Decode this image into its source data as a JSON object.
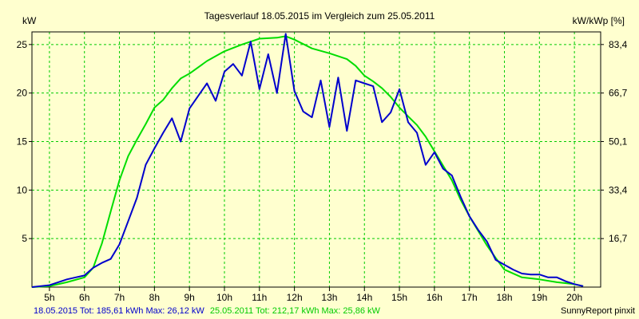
{
  "chart_data": {
    "type": "line",
    "title": "Tagesverlauf 18.05.2015 im Vergleich zum 25.05.2011",
    "ylabel_left": "kW",
    "ylabel_right": "kW/kWp [%]",
    "xlim": [
      4.5,
      20.75
    ],
    "ylim": [
      0,
      26.3
    ],
    "grid": true,
    "x_ticks": [
      5,
      6,
      7,
      8,
      9,
      10,
      11,
      12,
      13,
      14,
      15,
      16,
      17,
      18,
      19,
      20
    ],
    "x_tick_labels": [
      "5h",
      "6h",
      "7h",
      "8h",
      "9h",
      "10h",
      "11h",
      "12h",
      "13h",
      "14h",
      "15h",
      "16h",
      "17h",
      "18h",
      "19h",
      "20h"
    ],
    "y_left_ticks": [
      5,
      10,
      15,
      20,
      25
    ],
    "y_left_tick_labels": [
      "5",
      "10",
      "15",
      "20",
      "25"
    ],
    "y_right_tick_labels": [
      "16,7",
      "33,4",
      "50,1",
      "66,7",
      "83,4"
    ],
    "series": [
      {
        "name": "18.05.2015",
        "color": "#0000cc",
        "x": [
          4.5,
          5.0,
          5.25,
          5.5,
          5.75,
          6.0,
          6.25,
          6.5,
          6.75,
          7.0,
          7.25,
          7.5,
          7.75,
          8.0,
          8.25,
          8.5,
          8.75,
          9.0,
          9.25,
          9.5,
          9.75,
          10.0,
          10.25,
          10.5,
          10.75,
          11.0,
          11.25,
          11.5,
          11.75,
          12.0,
          12.25,
          12.5,
          12.75,
          13.0,
          13.25,
          13.5,
          13.75,
          14.0,
          14.25,
          14.5,
          14.75,
          15.0,
          15.25,
          15.5,
          15.75,
          16.0,
          16.25,
          16.5,
          16.75,
          17.0,
          17.25,
          17.5,
          17.75,
          18.0,
          18.25,
          18.5,
          18.75,
          19.0,
          19.25,
          19.5,
          19.75,
          20.0,
          20.25
        ],
        "y": [
          0,
          0.2,
          0.5,
          0.8,
          1.0,
          1.2,
          2.0,
          2.5,
          2.9,
          4.4,
          6.8,
          9.2,
          12.6,
          14.3,
          15.9,
          17.4,
          15.0,
          18.4,
          19.7,
          21.0,
          19.2,
          22.2,
          23.0,
          21.8,
          25.3,
          20.4,
          24.0,
          20.0,
          26.1,
          20.2,
          18.1,
          17.5,
          21.3,
          16.5,
          21.6,
          16.1,
          21.3,
          21.0,
          20.7,
          17.0,
          18.0,
          20.4,
          17.0,
          15.9,
          12.6,
          13.9,
          12.2,
          11.5,
          9.3,
          7.3,
          5.9,
          4.7,
          2.8,
          2.3,
          1.8,
          1.4,
          1.3,
          1.3,
          1.0,
          1.0,
          0.6,
          0.3,
          0.1
        ]
      },
      {
        "name": "25.05.2011",
        "color": "#00dd00",
        "x": [
          4.5,
          5.0,
          5.5,
          6.0,
          6.25,
          6.5,
          6.75,
          7.0,
          7.25,
          7.5,
          7.75,
          8.0,
          8.25,
          8.5,
          8.75,
          9.0,
          9.5,
          10.0,
          10.5,
          10.75,
          11.0,
          11.5,
          11.75,
          12.0,
          12.5,
          13.0,
          13.5,
          13.75,
          14.0,
          14.25,
          14.5,
          14.75,
          15.0,
          15.25,
          15.5,
          15.75,
          16.0,
          16.25,
          16.5,
          16.75,
          17.0,
          17.25,
          17.5,
          17.75,
          18.0,
          18.5,
          19.0,
          19.5,
          20.0,
          20.25
        ],
        "y": [
          0,
          0.1,
          0.5,
          1.0,
          2.0,
          4.5,
          7.8,
          11.0,
          13.5,
          15.2,
          16.8,
          18.5,
          19.3,
          20.5,
          21.5,
          22.0,
          23.3,
          24.3,
          25.0,
          25.3,
          25.6,
          25.7,
          25.86,
          25.5,
          24.6,
          24.1,
          23.5,
          22.8,
          21.8,
          21.2,
          20.5,
          19.6,
          18.5,
          17.6,
          16.7,
          15.5,
          14.0,
          12.5,
          11.0,
          9.0,
          7.3,
          5.8,
          4.3,
          3.0,
          1.8,
          1.0,
          0.8,
          0.5,
          0.3,
          0.1
        ]
      }
    ]
  },
  "footer": {
    "series1_text": "18.05.2015 Tot: 185,61 kWh Max: 26,12 kW",
    "series2_text": "25.05.2011 Tot: 212,17 kWh Max: 25,86 kW",
    "credit": "SunnyReport pinxit",
    "series1_color": "#0000cc",
    "series2_color": "#00cc00"
  }
}
